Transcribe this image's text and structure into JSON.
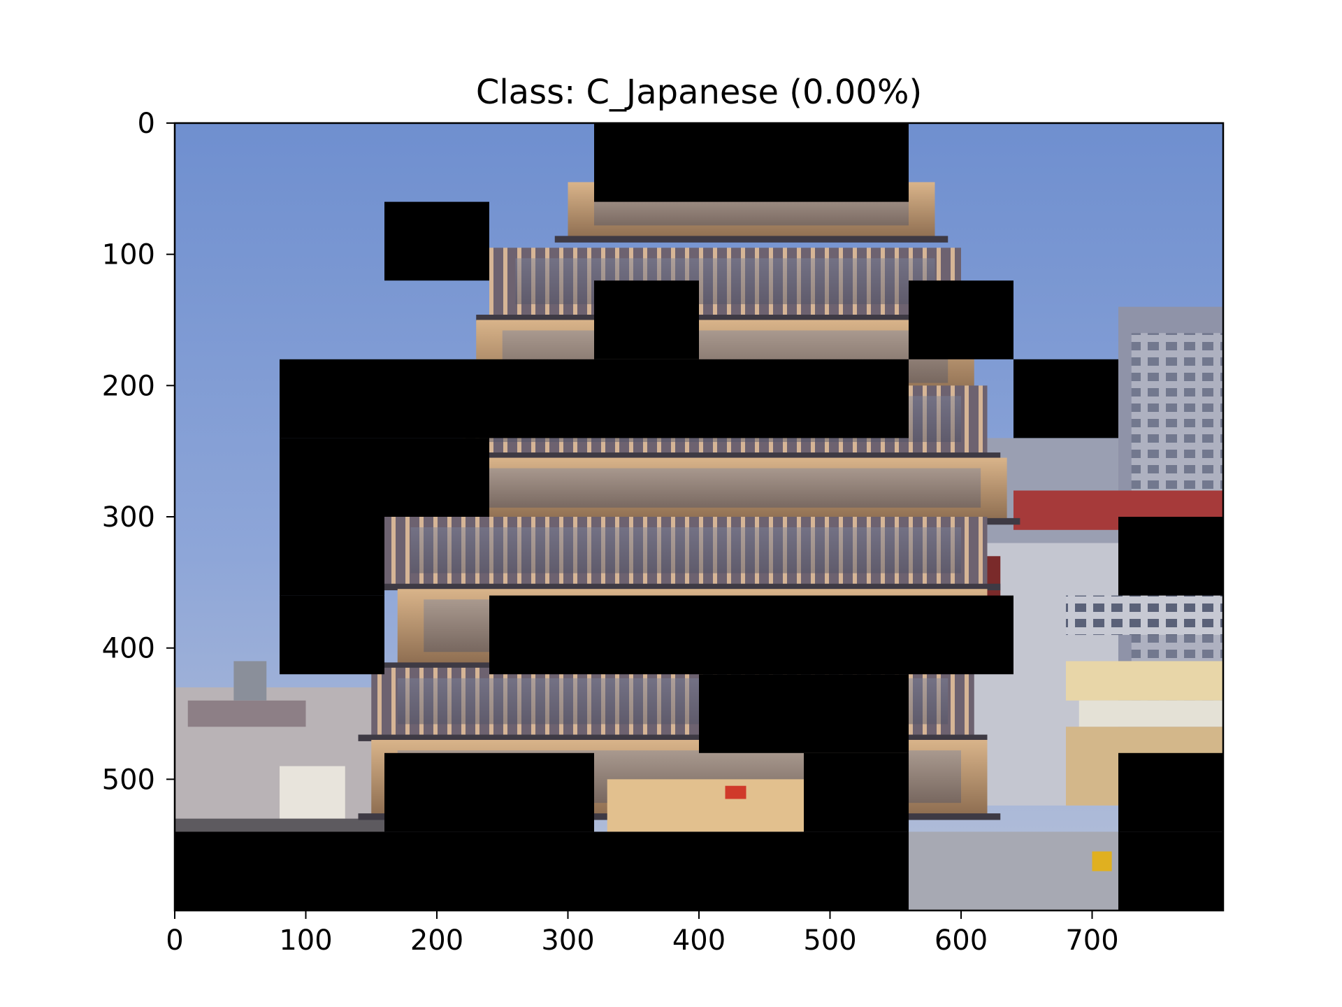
{
  "chart_data": {
    "type": "image",
    "title": "Class: C_Japanese (0.00%)",
    "xlim": [
      0,
      800
    ],
    "ylim": [
      600,
      0
    ],
    "xticks": [
      0,
      100,
      200,
      300,
      400,
      500,
      600,
      700
    ],
    "yticks": [
      0,
      100,
      200,
      300,
      400,
      500
    ],
    "grid": false,
    "image": {
      "content": "photo of a multi-storey glass and timber-louvered building at dusk with neighbouring city buildings",
      "occluded_patches": [
        [
          320,
          0,
          240,
          60
        ],
        [
          160,
          60,
          80,
          60
        ],
        [
          960,
          60,
          80,
          60
        ],
        [
          320,
          120,
          80,
          60
        ],
        [
          560,
          120,
          80,
          60
        ],
        [
          80,
          180,
          160,
          60
        ],
        [
          240,
          180,
          320,
          60
        ],
        [
          640,
          180,
          80,
          60
        ],
        [
          80,
          240,
          160,
          60
        ],
        [
          80,
          300,
          80,
          60
        ],
        [
          720,
          300,
          80,
          60
        ],
        [
          80,
          360,
          80,
          60
        ],
        [
          240,
          360,
          400,
          60
        ],
        [
          400,
          420,
          160,
          60
        ],
        [
          160,
          480,
          160,
          60
        ],
        [
          480,
          480,
          80,
          60
        ],
        [
          720,
          480,
          80,
          60
        ],
        [
          0,
          540,
          560,
          60
        ],
        [
          720,
          540,
          80,
          60
        ]
      ],
      "patch_color": "#000000"
    }
  }
}
